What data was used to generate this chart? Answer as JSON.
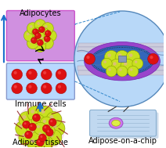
{
  "bg_color": "#ffffff",
  "labels": {
    "adipocytes": "Adipocytes",
    "immune_cells": "Immune cells",
    "adipose_tissue": "Adipose tissue",
    "chip": "Adipose-on-a-chip"
  },
  "font_size": 7.0,
  "arrow_blue": "#1a6fcc",
  "box1_color": "#d090e0",
  "box2_color": "#b8d8ff",
  "circle_color": "#b8d8f8",
  "chip_color": "#c0d8f0",
  "purple_ellipse": "#9944cc",
  "blue_ellipse": "#3366bb",
  "yellow_cell": "#c8e020",
  "yellow_cell_edge": "#88a000",
  "red_cell": "#dd1111",
  "fiber_color": "#8b1a1a",
  "dashed_color": "#3388cc",
  "channel_color": "#7799bb"
}
